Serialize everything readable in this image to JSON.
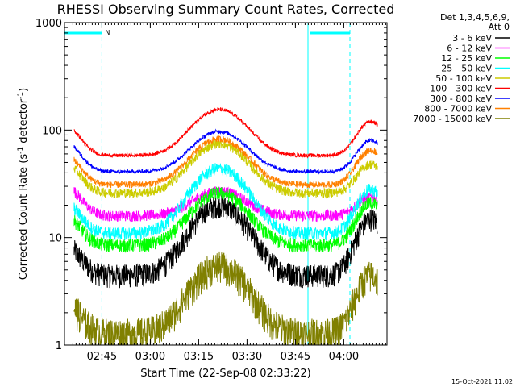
{
  "chart_data": {
    "type": "line",
    "title": "RHESSI Observing Summary Count Rates, Corrected",
    "xlabel": "Start Time (22-Sep-08 02:33:22)",
    "ylabel_main": "Corrected Count Rate (s",
    "ylabel_sup1": "-1",
    "ylabel_mid": " detector",
    "ylabel_sup2": "-1",
    "ylabel_end": ")",
    "y_scale": "log",
    "ylim": [
      1,
      1000
    ],
    "xlim_minutes": [
      0,
      100
    ],
    "x_ticks": [
      {
        "label": "02:45",
        "t": 11.6
      },
      {
        "label": "03:00",
        "t": 26.6
      },
      {
        "label": "03:15",
        "t": 41.6
      },
      {
        "label": "03:30",
        "t": 56.6
      },
      {
        "label": "03:45",
        "t": 71.6
      },
      {
        "label": "04:00",
        "t": 86.6
      }
    ],
    "y_ticks": [
      {
        "label": "1",
        "v": 1
      },
      {
        "label": "10",
        "v": 10
      },
      {
        "label": "100",
        "v": 100
      },
      {
        "label": "1000",
        "v": 1000
      }
    ],
    "legend_header": [
      "Det 1,3,4,5,6,9,",
      "Att 0"
    ],
    "series": [
      {
        "name": "3 - 6 keV",
        "color": "#000000",
        "ridge": 4.5,
        "peak1": 20,
        "peak2": 15,
        "noise": 0.25
      },
      {
        "name": "6 - 12 keV",
        "color": "#ff00ff",
        "ridge": 16,
        "peak1": 27,
        "peak2": 24,
        "noise": 0.12
      },
      {
        "name": "12 - 25 keV",
        "color": "#00ff00",
        "ridge": 8.5,
        "peak1": 26,
        "peak2": 21,
        "noise": 0.15
      },
      {
        "name": "25 - 50 keV",
        "color": "#00ffff",
        "ridge": 11,
        "peak1": 44,
        "peak2": 28,
        "noise": 0.14
      },
      {
        "name": "50 - 100 keV",
        "color": "#cccc00",
        "ridge": 26,
        "peak1": 75,
        "peak2": 48,
        "noise": 0.1
      },
      {
        "name": "100 - 300 keV",
        "color": "#ff0000",
        "ridge": 58,
        "peak1": 155,
        "peak2": 120,
        "noise": 0.04
      },
      {
        "name": "300 - 800 keV",
        "color": "#0000ff",
        "ridge": 41,
        "peak1": 97,
        "peak2": 80,
        "noise": 0.04
      },
      {
        "name": "800 - 7000 keV",
        "color": "#ff8000",
        "ridge": 31,
        "peak1": 83,
        "peak2": 65,
        "noise": 0.07
      },
      {
        "name": "7000 - 15000 keV",
        "color": "#808000",
        "ridge": 1.3,
        "peak1": 5.5,
        "peak2": 4.5,
        "noise": 0.35
      }
    ],
    "flags": [
      {
        "label": "N",
        "t_start": 0,
        "t_end": 11.6
      },
      {
        "label": "",
        "t_start": 76,
        "t_end": 88.5
      }
    ],
    "saa_lines_solid": [
      0,
      75.5
    ],
    "saa_lines_dashed": [
      11.6,
      88.5
    ]
  },
  "timestamp": "15-Oct-2021 11:02"
}
